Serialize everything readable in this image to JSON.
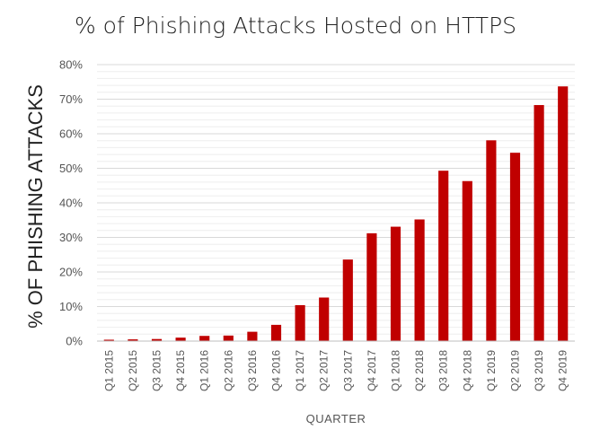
{
  "chart_data": {
    "type": "bar",
    "title": "% of Phishing Attacks Hosted on HTTPS",
    "xlabel": "QUARTER",
    "ylabel": "% OF PHISHING ATTACKS",
    "ylim": [
      0,
      80
    ],
    "y_ticks": [
      0,
      10,
      20,
      30,
      40,
      50,
      60,
      70,
      80
    ],
    "y_tick_suffix": "%",
    "grid": true,
    "bar_color": "#c00000",
    "categories": [
      "Q1 2015",
      "Q2 2015",
      "Q3 2015",
      "Q4 2015",
      "Q1 2016",
      "Q2 2016",
      "Q3 2016",
      "Q4 2016",
      "Q1 2017",
      "Q2 2017",
      "Q3 2017",
      "Q4 2017",
      "Q1 2018",
      "Q2 2018",
      "Q3 2018",
      "Q4 2018",
      "Q1 2019",
      "Q2 2019",
      "Q3 2019",
      "Q4 2019"
    ],
    "values": [
      0.4,
      0.5,
      0.6,
      1.0,
      1.5,
      1.6,
      2.7,
      4.7,
      10.4,
      12.6,
      23.6,
      31.2,
      33.1,
      35.2,
      49.3,
      46.3,
      58.1,
      54.5,
      68.3,
      73.7
    ]
  }
}
